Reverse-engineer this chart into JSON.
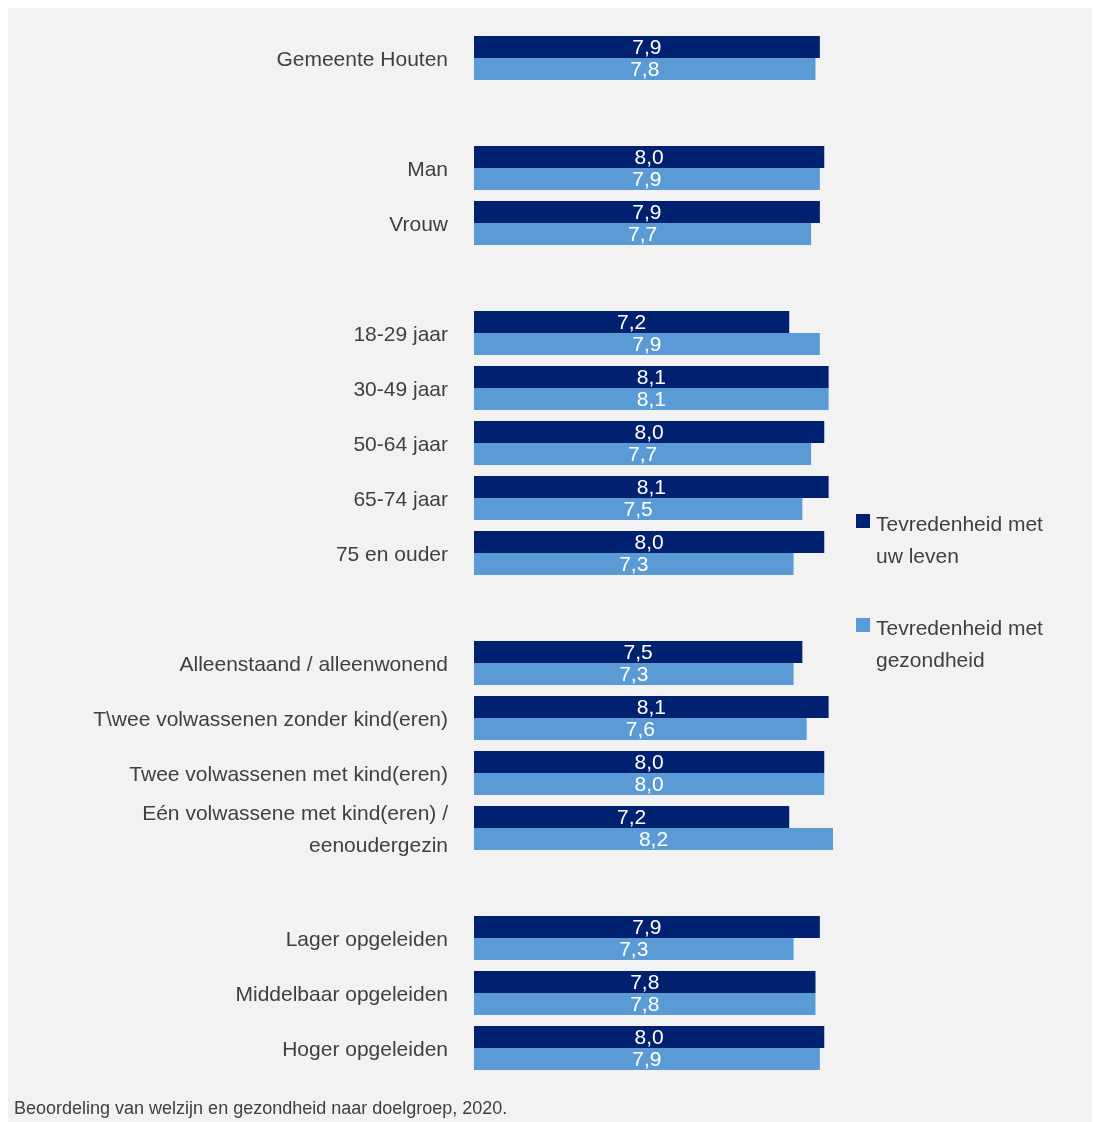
{
  "chart_data": {
    "type": "bar",
    "orientation": "horizontal",
    "tick_labels": "y",
    "legend": "right",
    "categories": [
      "Gemeente Houten",
      null,
      "Man",
      "Vrouw",
      null,
      "18-29 jaar",
      "30-49 jaar",
      "50-64 jaar",
      "65-74 jaar",
      "75 en ouder",
      null,
      "Alleenstaand / alleenwonend",
      "T\\wee volwassenen zonder kind(eren)",
      "Twee volwassenen met kind(eren)",
      "Eén volwassene met kind(eren) / eenoudergezin",
      null,
      "Lager opgeleiden",
      "Middelbaar opgeleiden",
      "Hoger opgeleiden"
    ],
    "series": [
      {
        "name": "Tevredenheid met uw leven",
        "color": "#002070",
        "values": [
          7.9,
          null,
          8.0,
          7.9,
          null,
          7.2,
          8.1,
          8.0,
          8.1,
          8.0,
          null,
          7.5,
          8.1,
          8.0,
          7.2,
          null,
          7.9,
          7.8,
          8.0
        ],
        "value_labels": [
          "7,9",
          null,
          "8,0",
          "7,9",
          null,
          "7,2",
          "8,1",
          "8,0",
          "8,1",
          "8,0",
          null,
          "7,5",
          "8,1",
          "8,0",
          "7,2",
          null,
          "7,9",
          "7,8",
          "8,0"
        ]
      },
      {
        "name": "Tevredenheid met gezondheid",
        "color": "#5b9bd5",
        "values": [
          7.8,
          null,
          7.9,
          7.7,
          null,
          7.9,
          8.1,
          7.7,
          7.5,
          7.3,
          null,
          7.3,
          7.6,
          8.0,
          8.2,
          null,
          7.3,
          7.8,
          7.9
        ],
        "value_labels": [
          "7,8",
          null,
          "7,9",
          "7,7",
          null,
          "7,9",
          "8,1",
          "7,7",
          "7,5",
          "7,3",
          null,
          "7,3",
          "7,6",
          "8,0",
          "8,2",
          null,
          "7,3",
          "7,8",
          "7,9"
        ]
      }
    ],
    "annotations": [
      "Beoordeling van welzijn en gezondheid naar doelgroep, 2020."
    ]
  }
}
